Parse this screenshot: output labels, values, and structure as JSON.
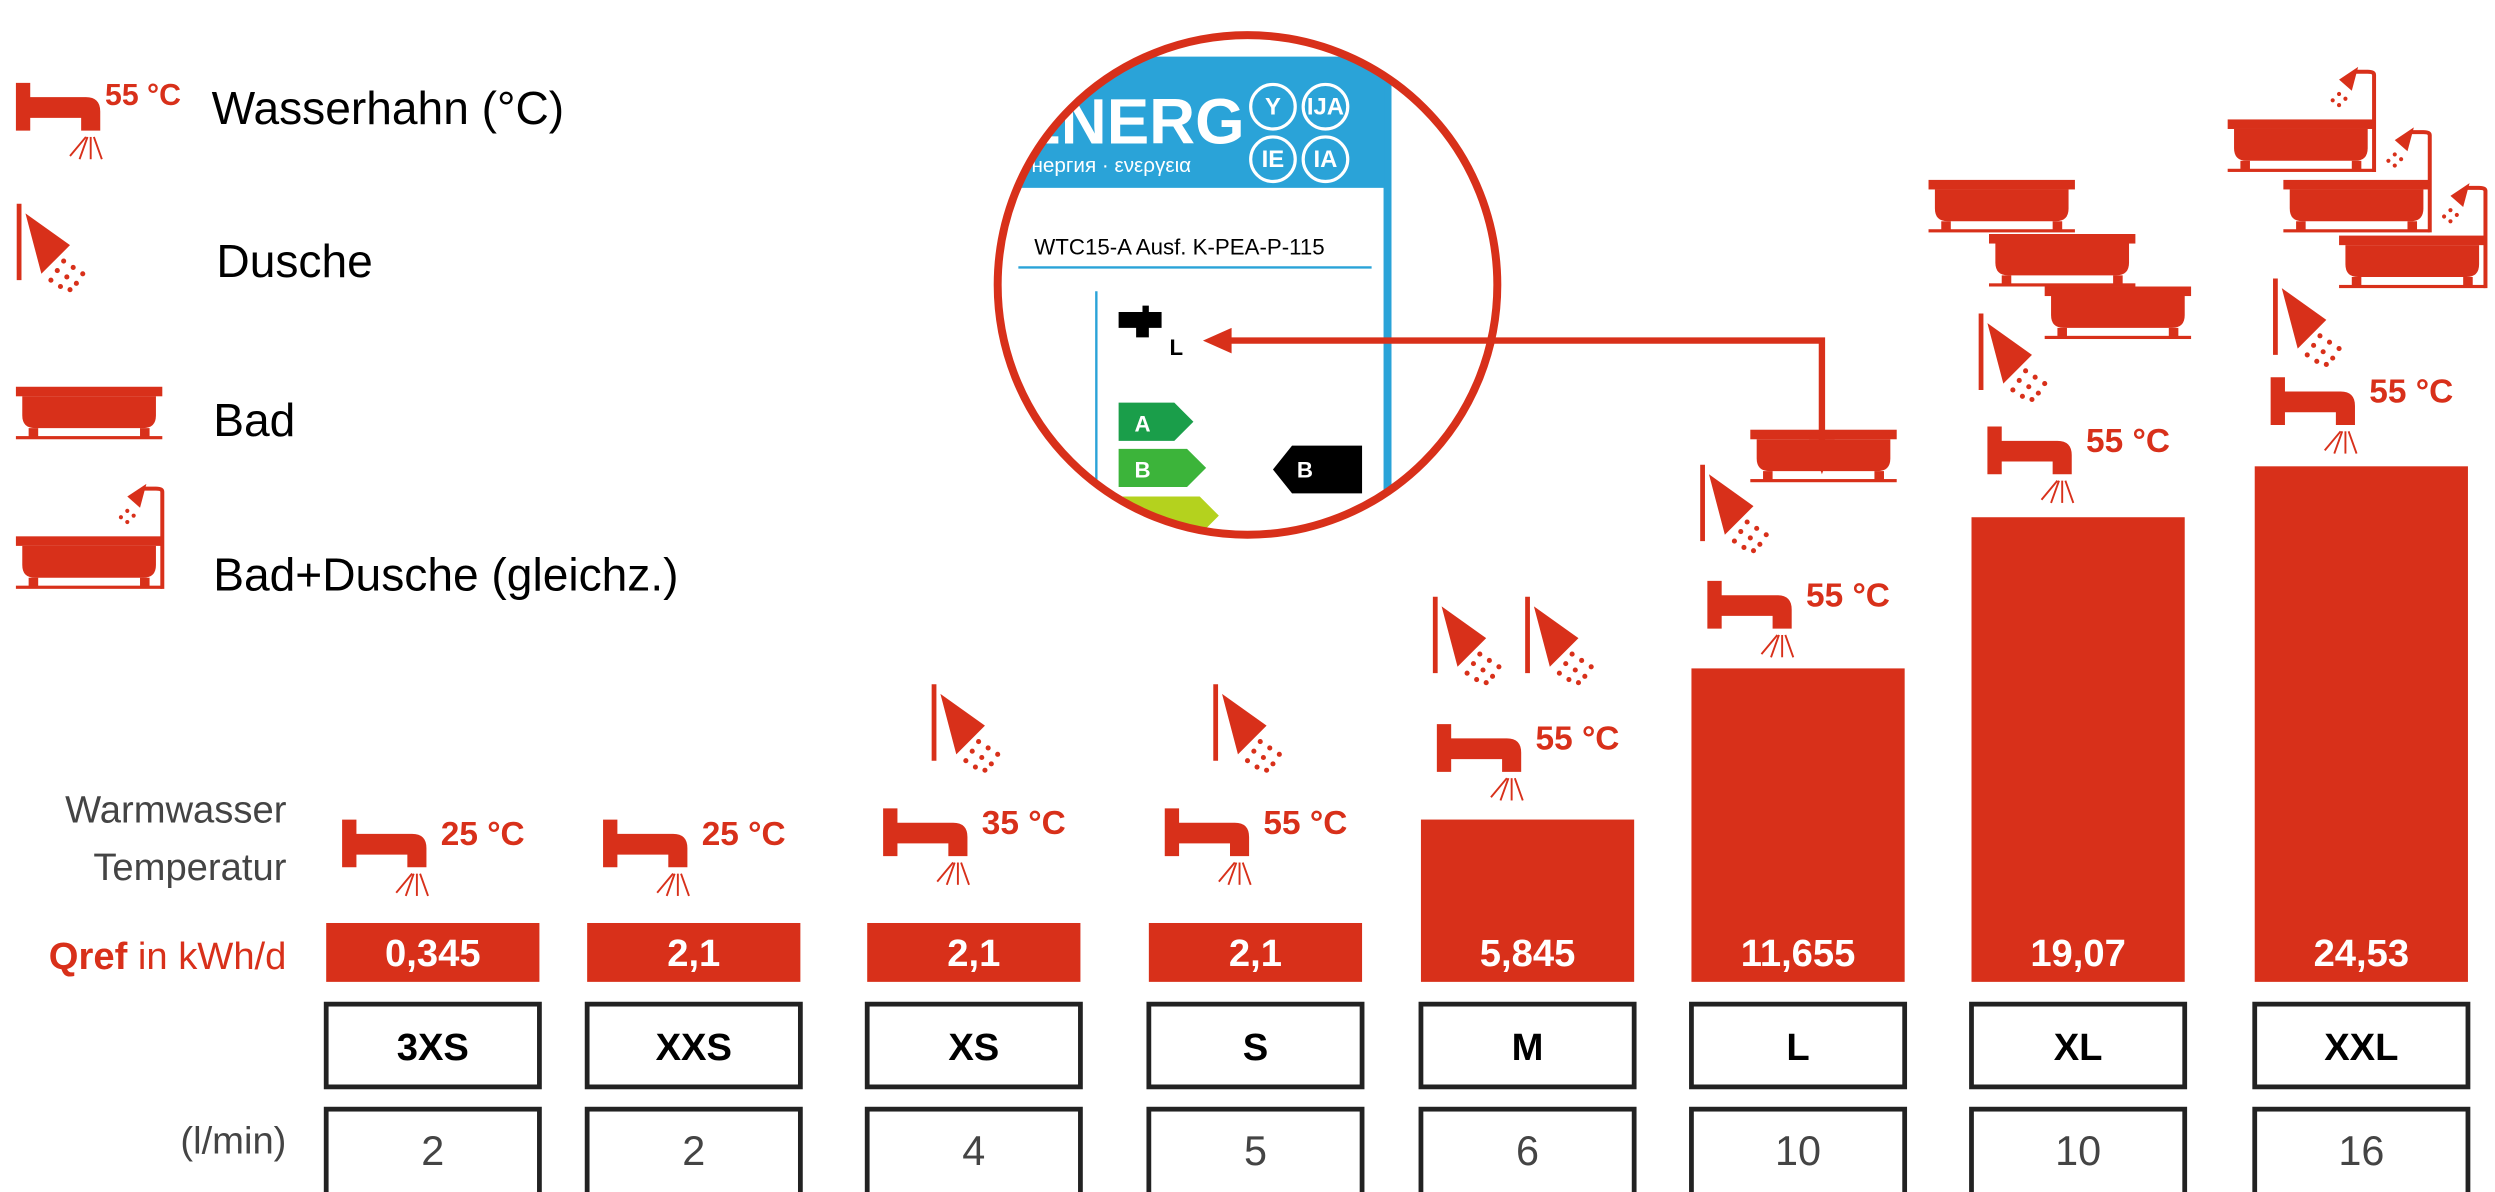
{
  "legend": [
    {
      "temp": "55 °C",
      "label": "Wasserhahn (°C)"
    },
    {
      "label": "Dusche"
    },
    {
      "label": "Bad"
    },
    {
      "label": "Bad+Dusche (gleichz.)"
    }
  ],
  "row_labels": {
    "temperature": [
      "Warmwasser",
      "Temperatur"
    ],
    "qref": "Qref",
    "qref_unit": " in kWh/d",
    "flow": "(l/min)"
  },
  "energy_label": {
    "header": "ENERG",
    "subheader": "енергия · ενεργεια",
    "badges": [
      "Y",
      "IJA",
      "IE",
      "IA"
    ],
    "model": "WTC15-A Ausf. K-PEA-P-115",
    "tap_size": "L",
    "classes": [
      "A",
      "B"
    ],
    "rating": "B"
  },
  "columns": [
    {
      "temp": "25 °C",
      "qref": "0,345",
      "size": "3XS",
      "flow": "2"
    },
    {
      "temp": "25 °C",
      "qref": "2,1",
      "size": "XXS",
      "flow": "2"
    },
    {
      "temp": "35 °C",
      "qref": "2,1",
      "size": "XS",
      "flow": "4"
    },
    {
      "temp": "55 °C",
      "qref": "2,1",
      "size": "S",
      "flow": "5"
    },
    {
      "temp": "55 °C",
      "qref": "5,845",
      "size": "M",
      "flow": "6"
    },
    {
      "temp": "55 °C",
      "qref": "11,655",
      "size": "L",
      "flow": "10"
    },
    {
      "temp": "55 °C",
      "qref": "19,07",
      "size": "XL",
      "flow": "10"
    },
    {
      "temp": "55 °C",
      "qref": "24,53",
      "size": "XXL",
      "flow": "16"
    }
  ]
}
